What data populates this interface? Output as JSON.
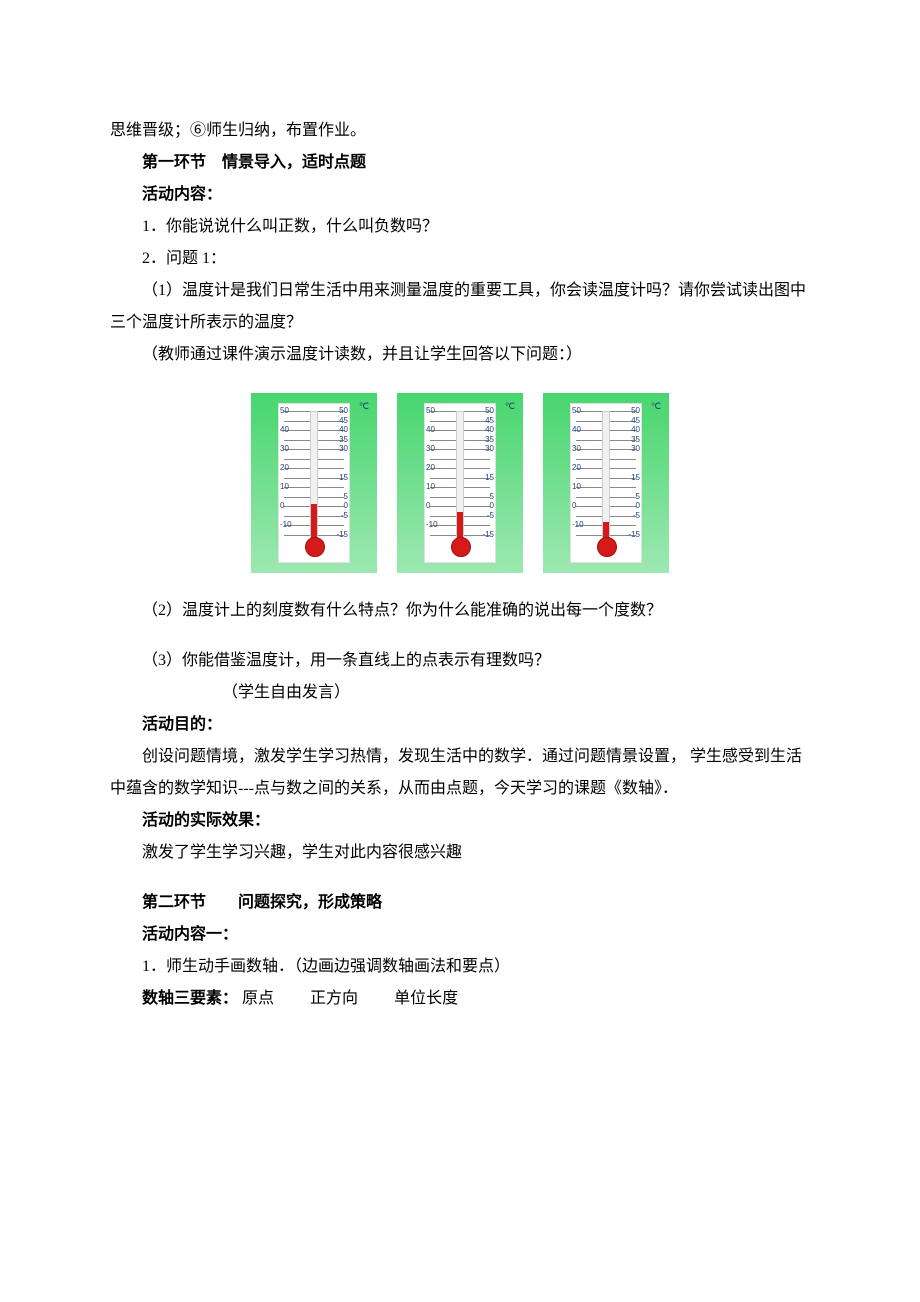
{
  "intro_line": "思维晋级；⑥师生归纳，布置作业。",
  "section1": {
    "title": "第一环节　情景导入，适时点题",
    "activity_label": "活动内容：",
    "q1": "1．你能说说什么叫正数，什么叫负数吗？",
    "q2_header": "2．问题 1：",
    "q2_1": "（1）温度计是我们日常生活中用来测量温度的重要工具，你会读温度计吗？请你尝试读出图中三个温度计所表示的温度？",
    "q2_note": "（教师通过课件演示温度计读数，并且让学生回答以下问题：）",
    "q2_2": "（2）温度计上的刻度数有什么特点？你为什么能准确的说出每一个度数？",
    "q2_3": "（3）你能借鉴温度计，用一条直线上的点表示有理数吗？",
    "q2_free": "（学生自由发言）",
    "purpose_label": "活动目的：",
    "purpose_text": "创设问题情境，激发学生学习热情，发现生活中的数学．通过问题情景设置， 学生感受到生活中蕴含的数学知识---点与数之间的关系，从而由点题，今天学习的课题《数轴》．",
    "effect_label": "活动的实际效果：",
    "effect_text": "激发了学生学习兴趣，学生对此内容很感兴趣"
  },
  "section2": {
    "title": "第二环节　　问题探究，形成策略",
    "activity_label": "活动内容一：",
    "line1": "1．师生动手画数轴．（边画边强调数轴画法和要点）",
    "elements_label": "数轴三要素：",
    "e1": "原点",
    "e2": "正方向",
    "e3": "单位长度"
  },
  "thermometers": {
    "unit": "℃",
    "ticks": [
      {
        "pos": 0,
        "left": "50",
        "right": "50"
      },
      {
        "pos": 10,
        "left": "",
        "right": "45"
      },
      {
        "pos": 20,
        "left": "40",
        "right": "40"
      },
      {
        "pos": 30,
        "left": "",
        "right": "35"
      },
      {
        "pos": 40,
        "left": "30",
        "right": "30"
      },
      {
        "pos": 50,
        "left": "",
        "right": ""
      },
      {
        "pos": 60,
        "left": "20",
        "right": ""
      },
      {
        "pos": 70,
        "left": "",
        "right": "15"
      },
      {
        "pos": 80,
        "left": "10",
        "right": ""
      },
      {
        "pos": 90,
        "left": "",
        "right": "5"
      },
      {
        "pos": 100,
        "left": "0",
        "right": "0"
      },
      {
        "pos": 110,
        "left": "",
        "right": "-5"
      },
      {
        "pos": 120,
        "left": "-10",
        "right": ""
      },
      {
        "pos": 130,
        "left": "",
        "right": "-15"
      }
    ],
    "fill_heights": [
      "28%",
      "22%",
      "14%"
    ],
    "colors": {
      "card_bg_top": "#47d66e",
      "card_bg_bottom": "#9de8b1",
      "tube_fill": "#d61a1a",
      "tick_label": "#224477"
    }
  }
}
